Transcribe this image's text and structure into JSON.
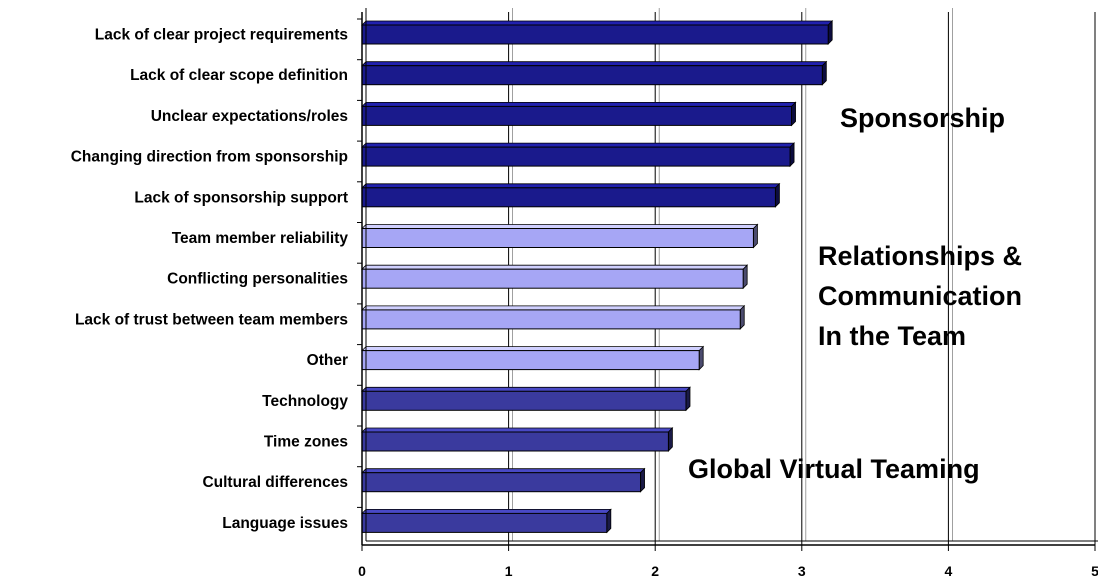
{
  "chart_data": {
    "type": "bar",
    "orientation": "horizontal",
    "categories": [
      "Lack of clear project requirements",
      "Lack of clear scope definition",
      "Unclear expectations/roles",
      "Changing direction from sponsorship",
      "Lack of sponsorship support",
      "Team member reliability",
      "Conflicting personalities",
      "Lack of trust between team members",
      "Other",
      "Technology",
      "Time zones",
      "Cultural differences",
      "Language issues"
    ],
    "values": [
      3.18,
      3.14,
      2.93,
      2.92,
      2.82,
      2.67,
      2.6,
      2.58,
      2.3,
      2.21,
      2.09,
      1.9,
      1.67
    ],
    "groups": [
      0,
      0,
      0,
      0,
      0,
      1,
      1,
      1,
      1,
      2,
      2,
      2,
      2
    ],
    "group_colors": [
      "#1a1a8c",
      "#a6a6f5",
      "#3a3a9e"
    ],
    "xlim": [
      0,
      5
    ],
    "xticks": [
      "0",
      "1",
      "2",
      "3",
      "4",
      "5"
    ],
    "grid": "vertical",
    "annotations": {
      "sponsorship": [
        "Sponsorship"
      ],
      "relationships": [
        "Relationships &",
        "Communication",
        "In the Team"
      ],
      "global": [
        "Global Virtual Teaming"
      ]
    },
    "title": "",
    "xlabel": "",
    "ylabel": ""
  }
}
